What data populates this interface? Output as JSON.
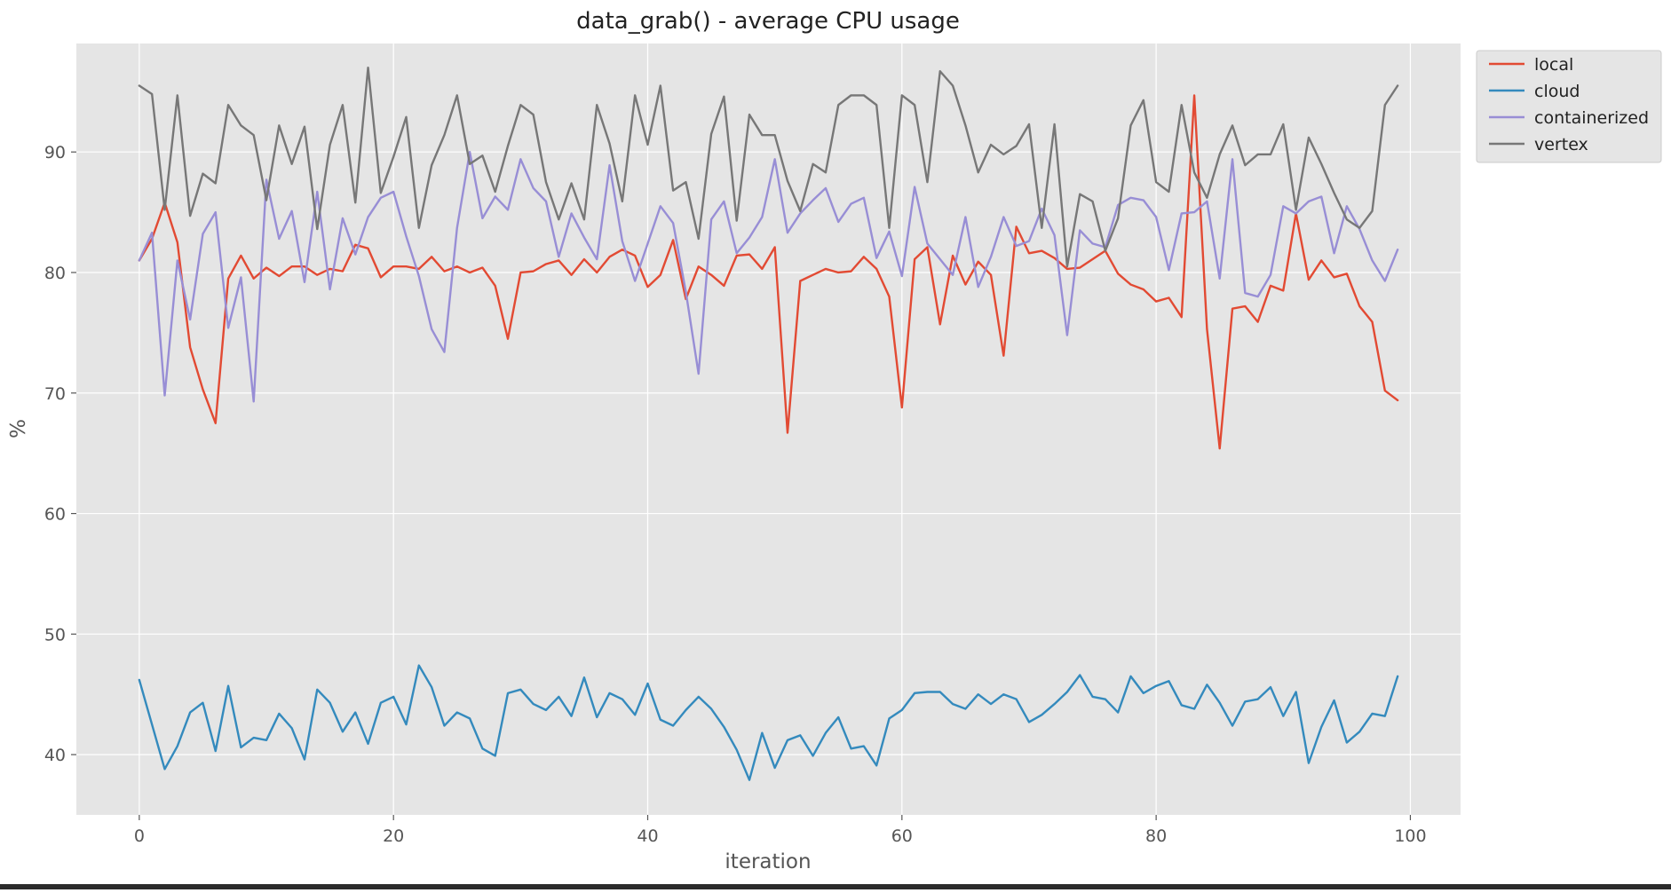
{
  "chart_data": {
    "type": "line",
    "title": "data_grab() - average CPU usage",
    "xlabel": "iteration",
    "ylabel": "%",
    "xlim": [
      -4.95,
      103.95
    ],
    "ylim": [
      35.0,
      99.0
    ],
    "x_ticks": [
      0,
      20,
      40,
      60,
      80,
      100
    ],
    "y_ticks": [
      40,
      50,
      60,
      70,
      80,
      90
    ],
    "grid": true,
    "legend_position": "outside-top-right",
    "x": [
      0,
      1,
      2,
      3,
      4,
      5,
      6,
      7,
      8,
      9,
      10,
      11,
      12,
      13,
      14,
      15,
      16,
      17,
      18,
      19,
      20,
      21,
      22,
      23,
      24,
      25,
      26,
      27,
      28,
      29,
      30,
      31,
      32,
      33,
      34,
      35,
      36,
      37,
      38,
      39,
      40,
      41,
      42,
      43,
      44,
      45,
      46,
      47,
      48,
      49,
      50,
      51,
      52,
      53,
      54,
      55,
      56,
      57,
      58,
      59,
      60,
      61,
      62,
      63,
      64,
      65,
      66,
      67,
      68,
      69,
      70,
      71,
      72,
      73,
      74,
      75,
      76,
      77,
      78,
      79,
      80,
      81,
      82,
      83,
      84,
      85,
      86,
      87,
      88,
      89,
      90,
      91,
      92,
      93,
      94,
      95,
      96,
      97,
      98,
      99
    ],
    "series": [
      {
        "name": "local",
        "color": "#E24A33",
        "values": [
          81.0,
          82.8,
          85.8,
          82.5,
          73.8,
          70.3,
          67.5,
          79.5,
          81.4,
          79.5,
          80.4,
          79.7,
          80.5,
          80.5,
          79.8,
          80.3,
          80.1,
          82.3,
          82.0,
          79.6,
          80.5,
          80.5,
          80.3,
          81.3,
          80.1,
          80.5,
          80.0,
          80.4,
          78.9,
          74.5,
          80.0,
          80.1,
          80.7,
          81.0,
          79.8,
          81.1,
          80.0,
          81.3,
          81.9,
          81.4,
          78.8,
          79.8,
          82.7,
          77.8,
          80.5,
          79.8,
          78.9,
          81.4,
          81.5,
          80.3,
          82.1,
          66.7,
          79.3,
          79.8,
          80.3,
          80.0,
          80.1,
          81.3,
          80.3,
          78.0,
          68.8,
          81.1,
          82.1,
          75.7,
          81.4,
          79.0,
          80.9,
          79.8,
          73.1,
          83.8,
          81.6,
          81.8,
          81.2,
          80.3,
          80.4,
          81.1,
          81.8,
          79.9,
          79.0,
          78.6,
          77.6,
          77.9,
          76.3,
          94.7,
          75.3,
          65.4,
          77.0,
          77.2,
          75.9,
          78.9,
          78.5,
          84.9,
          79.4,
          81.0,
          79.6,
          79.9,
          77.2,
          75.9,
          70.2,
          69.4
        ]
      },
      {
        "name": "cloud",
        "color": "#348ABD",
        "values": [
          46.2,
          42.5,
          38.8,
          40.7,
          43.5,
          44.3,
          40.3,
          45.7,
          40.6,
          41.4,
          41.2,
          43.4,
          42.2,
          39.6,
          45.4,
          44.3,
          41.9,
          43.5,
          40.9,
          44.3,
          44.8,
          42.5,
          47.4,
          45.6,
          42.4,
          43.5,
          43.0,
          40.5,
          39.9,
          45.1,
          45.4,
          44.2,
          43.7,
          44.8,
          43.2,
          46.4,
          43.1,
          45.1,
          44.6,
          43.3,
          45.9,
          42.9,
          42.4,
          43.7,
          44.8,
          43.8,
          42.3,
          40.4,
          37.9,
          41.8,
          38.9,
          41.2,
          41.6,
          39.9,
          41.8,
          43.1,
          40.5,
          40.7,
          39.1,
          43.0,
          43.7,
          45.1,
          45.2,
          45.2,
          44.2,
          43.8,
          45.0,
          44.2,
          45.0,
          44.6,
          42.7,
          43.3,
          44.2,
          45.2,
          46.6,
          44.8,
          44.6,
          43.5,
          46.5,
          45.1,
          45.7,
          46.1,
          44.1,
          43.8,
          45.8,
          44.3,
          42.4,
          44.4,
          44.6,
          45.6,
          43.2,
          45.2,
          39.3,
          42.3,
          44.5,
          41.0,
          41.9,
          43.4,
          43.2,
          46.5
        ]
      },
      {
        "name": "containerized",
        "color": "#988ED5",
        "values": [
          81.0,
          83.3,
          69.8,
          81.0,
          76.1,
          83.2,
          85.0,
          75.4,
          79.6,
          69.3,
          87.7,
          82.8,
          85.1,
          79.2,
          86.7,
          78.6,
          84.5,
          81.5,
          84.6,
          86.2,
          86.7,
          83.0,
          79.7,
          75.3,
          73.4,
          83.7,
          90.0,
          84.5,
          86.3,
          85.2,
          89.4,
          87.0,
          85.9,
          81.3,
          84.9,
          82.9,
          81.1,
          88.9,
          82.6,
          79.3,
          82.4,
          85.5,
          84.1,
          78.4,
          71.6,
          84.4,
          85.9,
          81.6,
          82.9,
          84.6,
          89.4,
          83.3,
          84.9,
          86.0,
          87.0,
          84.2,
          85.7,
          86.2,
          81.2,
          83.4,
          79.7,
          87.1,
          82.4,
          81.1,
          79.8,
          84.6,
          78.8,
          81.3,
          84.6,
          82.2,
          82.6,
          85.3,
          83.1,
          74.8,
          83.5,
          82.4,
          82.1,
          85.6,
          86.2,
          86.0,
          84.6,
          80.2,
          84.9,
          85.0,
          85.9,
          79.5,
          89.4,
          78.3,
          78.0,
          79.8,
          85.5,
          84.9,
          85.9,
          86.3,
          81.6,
          85.5,
          83.6,
          81.0,
          79.3,
          81.9
        ]
      },
      {
        "name": "vertex",
        "color": "#777777",
        "values": [
          95.5,
          94.8,
          85.2,
          94.7,
          84.7,
          88.2,
          87.4,
          93.9,
          92.2,
          91.4,
          86.0,
          92.2,
          89.0,
          92.1,
          83.6,
          90.6,
          93.9,
          85.8,
          97.0,
          86.6,
          89.6,
          92.9,
          83.7,
          88.9,
          91.4,
          94.7,
          89.0,
          89.7,
          86.7,
          90.5,
          93.9,
          93.1,
          87.5,
          84.4,
          87.4,
          84.4,
          93.9,
          90.7,
          85.9,
          94.7,
          90.6,
          95.5,
          86.8,
          87.5,
          82.8,
          91.5,
          94.6,
          84.3,
          93.1,
          91.4,
          91.4,
          87.6,
          85.1,
          89.0,
          88.3,
          93.9,
          94.7,
          94.7,
          93.9,
          83.7,
          94.7,
          93.9,
          87.5,
          96.7,
          95.5,
          92.2,
          88.3,
          90.6,
          89.8,
          90.5,
          92.3,
          83.7,
          92.3,
          80.5,
          86.5,
          85.9,
          81.8,
          84.5,
          92.2,
          94.3,
          87.5,
          86.7,
          93.9,
          88.3,
          86.2,
          89.8,
          92.2,
          88.9,
          89.8,
          89.8,
          92.3,
          85.2,
          91.2,
          89.0,
          86.6,
          84.4,
          83.7,
          85.1,
          93.9,
          95.5
        ]
      }
    ]
  }
}
